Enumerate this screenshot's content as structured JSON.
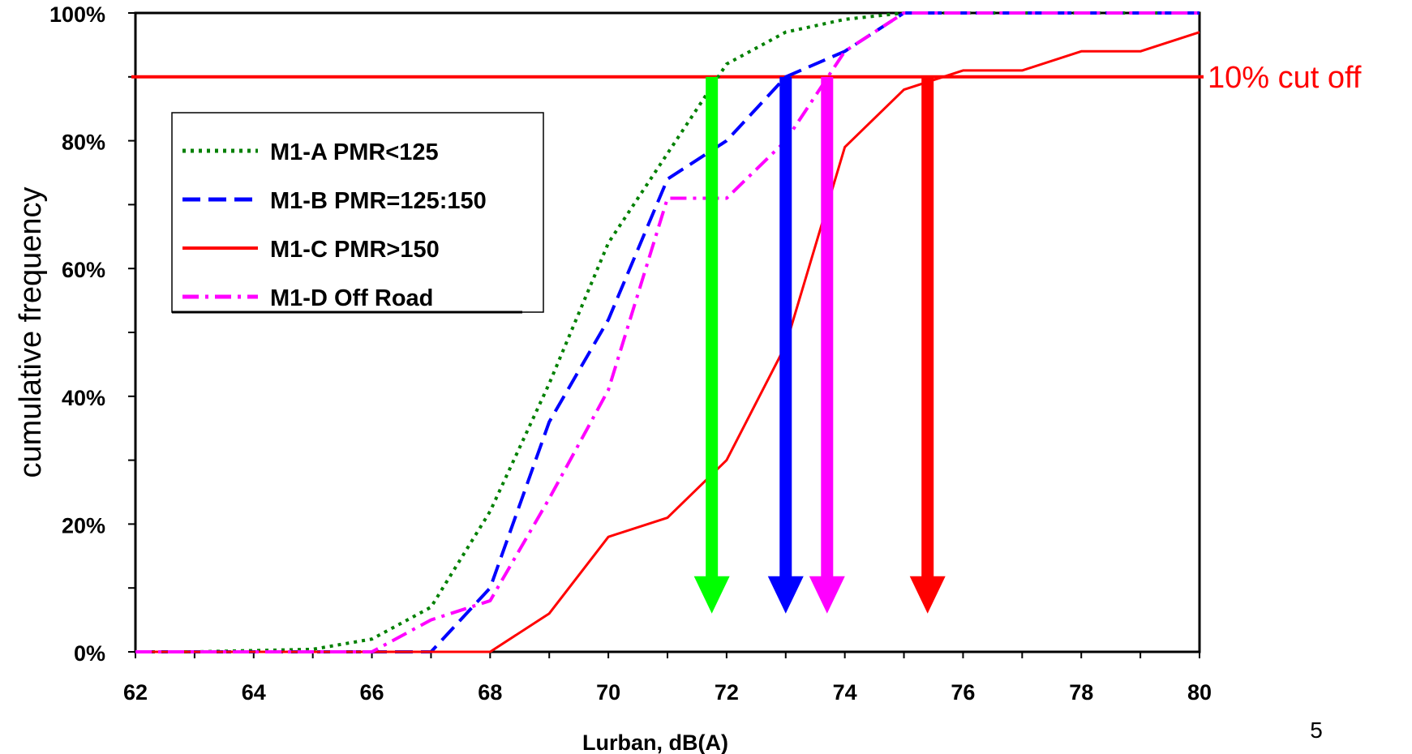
{
  "chart_data": {
    "type": "line",
    "xlabel": "Lurban, dB(A)",
    "ylabel": "cumulative frequency",
    "xlim": [
      62,
      80
    ],
    "ylim": [
      0,
      100
    ],
    "x_ticks": [
      "62",
      "64",
      "66",
      "68",
      "70",
      "72",
      "74",
      "76",
      "78",
      "80"
    ],
    "y_ticks": [
      "0%",
      "20%",
      "40%",
      "60%",
      "80%",
      "100%"
    ],
    "grid": false,
    "legend_position": "top-left",
    "series": [
      {
        "name": "M1-A PMR<125",
        "color": "#008000",
        "style": "dotted",
        "points": [
          [
            62,
            0
          ],
          [
            63,
            0
          ],
          [
            64,
            0.2
          ],
          [
            65,
            0.4
          ],
          [
            66,
            2
          ],
          [
            67,
            7
          ],
          [
            68,
            22
          ],
          [
            69,
            42
          ],
          [
            70,
            64
          ],
          [
            71,
            78
          ],
          [
            72,
            92
          ],
          [
            73,
            97
          ],
          [
            74,
            99
          ],
          [
            75,
            100
          ],
          [
            76,
            100
          ],
          [
            77,
            100
          ],
          [
            78,
            100
          ],
          [
            79,
            100
          ],
          [
            80,
            100
          ]
        ]
      },
      {
        "name": "M1-B PMR=125:150",
        "color": "#0000ff",
        "style": "dashed",
        "points": [
          [
            62,
            0
          ],
          [
            63,
            0
          ],
          [
            64,
            0
          ],
          [
            65,
            0
          ],
          [
            66,
            0
          ],
          [
            67,
            0
          ],
          [
            68,
            10
          ],
          [
            69,
            36
          ],
          [
            70,
            52
          ],
          [
            71,
            74
          ],
          [
            72,
            80
          ],
          [
            73,
            90
          ],
          [
            74,
            94
          ],
          [
            75,
            100
          ],
          [
            76,
            100
          ],
          [
            77,
            100
          ],
          [
            78,
            100
          ],
          [
            79,
            100
          ],
          [
            80,
            100
          ]
        ]
      },
      {
        "name": "M1-C PMR>150",
        "color": "#ff0000",
        "style": "solid",
        "points": [
          [
            62,
            0
          ],
          [
            63,
            0
          ],
          [
            64,
            0
          ],
          [
            65,
            0
          ],
          [
            66,
            0
          ],
          [
            67,
            0
          ],
          [
            68,
            0
          ],
          [
            69,
            6
          ],
          [
            70,
            18
          ],
          [
            71,
            21
          ],
          [
            72,
            30
          ],
          [
            73,
            48
          ],
          [
            74,
            79
          ],
          [
            75,
            88
          ],
          [
            76,
            91
          ],
          [
            77,
            91
          ],
          [
            78,
            94
          ],
          [
            79,
            94
          ],
          [
            80,
            97
          ]
        ]
      },
      {
        "name": "M1-D Off Road",
        "color": "#ff00ff",
        "style": "dashdot",
        "points": [
          [
            62,
            0
          ],
          [
            63,
            0
          ],
          [
            64,
            0
          ],
          [
            65,
            0
          ],
          [
            66,
            0
          ],
          [
            67,
            5
          ],
          [
            68,
            8
          ],
          [
            69,
            24
          ],
          [
            70,
            41
          ],
          [
            71,
            71
          ],
          [
            72,
            71
          ],
          [
            73,
            80
          ],
          [
            74,
            94
          ],
          [
            75,
            100
          ],
          [
            76,
            100
          ],
          [
            77,
            100
          ],
          [
            78,
            100
          ],
          [
            79,
            100
          ],
          [
            80,
            100
          ]
        ]
      }
    ],
    "annotations": {
      "cutoff": {
        "label": "10% cut off",
        "y": 90,
        "color": "#ff0000"
      },
      "arrows": [
        {
          "x": 71.75,
          "from_y": 90,
          "to_y": 6,
          "color": "#00ff00"
        },
        {
          "x": 73.0,
          "from_y": 90,
          "to_y": 6,
          "color": "#0000ff"
        },
        {
          "x": 73.7,
          "from_y": 90,
          "to_y": 6,
          "color": "#ff00ff"
        },
        {
          "x": 75.4,
          "from_y": 90,
          "to_y": 6,
          "color": "#ff0000"
        }
      ]
    }
  },
  "page_number": "5"
}
